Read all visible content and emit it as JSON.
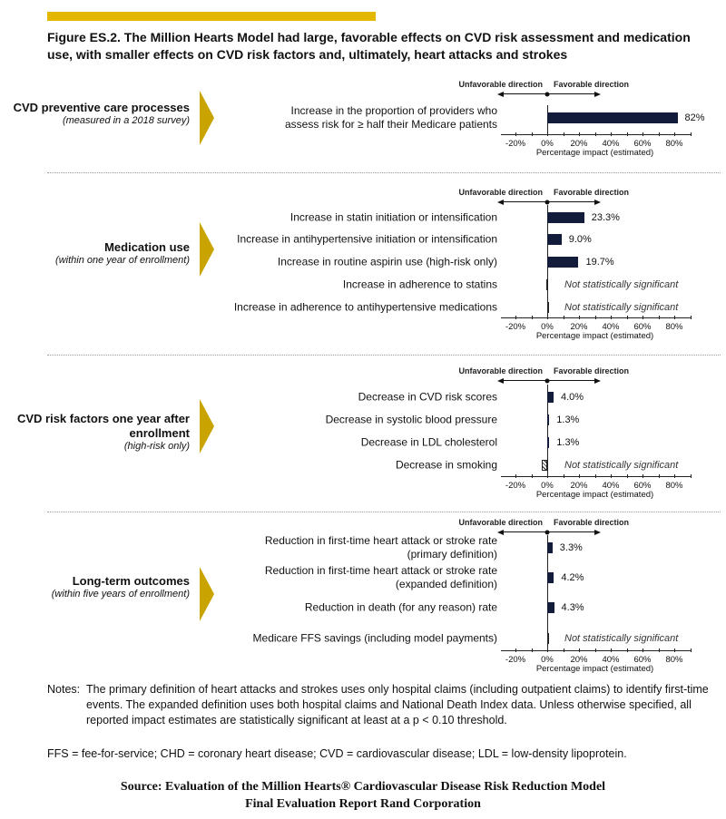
{
  "chart_data": {
    "type": "bar",
    "title": "Figure ES.2. The Million Hearts Model had large, favorable effects on CVD risk assessment and medication use, with smaller effects on CVD risk factors and, ultimately, heart attacks and strokes",
    "direction": {
      "unfavorable": "Unfavorable direction",
      "favorable": "Favorable direction"
    },
    "xlabel": "Percentage impact (estimated)",
    "xlim": [
      -29,
      90
    ],
    "ticks": [
      "-20%",
      "0%",
      "20%",
      "40%",
      "60%",
      "80%"
    ],
    "tick_values": [
      -20,
      0,
      20,
      40,
      60,
      80
    ],
    "panels": [
      {
        "category": {
          "title": "CVD preventive care processes",
          "subtitle": "(measured in a 2018 survey)"
        },
        "rows": [
          {
            "label": "Increase in the proportion of providers who\nassess risk for ≥ half their Medicare patients",
            "value": 82,
            "value_label": "82%",
            "significant": true
          }
        ]
      },
      {
        "category": {
          "title": "Medication use",
          "subtitle": "(within one year of enrollment)"
        },
        "rows": [
          {
            "label": "Increase in statin initiation or intensification",
            "value": 23.3,
            "value_label": "23.3%",
            "significant": true
          },
          {
            "label": "Increase in antihypertensive initiation or intensification",
            "value": 9.0,
            "value_label": "9.0%",
            "significant": true
          },
          {
            "label": "Increase in routine aspirin use (high-risk only)",
            "value": 19.7,
            "value_label": "19.7%",
            "significant": true
          },
          {
            "label": "Increase in adherence to statins",
            "value": -0.8,
            "value_label": "Not statistically significant",
            "significant": false
          },
          {
            "label": "Increase in adherence to antihypertensive medications",
            "value": 0.3,
            "value_label": "Not statistically significant",
            "significant": false
          }
        ]
      },
      {
        "category": {
          "title": "CVD risk factors one year after enrollment",
          "subtitle": "(high-risk only)"
        },
        "rows": [
          {
            "label": "Decrease in CVD risk scores",
            "value": 4.0,
            "value_label": "4.0%",
            "significant": true
          },
          {
            "label": "Decrease in systolic  blood pressure",
            "value": 1.3,
            "value_label": "1.3%",
            "significant": true
          },
          {
            "label": "Decrease in LDL cholesterol",
            "value": 1.3,
            "value_label": "1.3%",
            "significant": true
          },
          {
            "label": "Decrease in smoking",
            "value": -3.5,
            "value_label": "Not statistically significant",
            "significant": false
          }
        ]
      },
      {
        "category": {
          "title": "Long-term outcomes",
          "subtitle": "(within five years of enrollment)"
        },
        "rows": [
          {
            "label": "Reduction in first-time heart attack or stroke rate\n(primary definition)",
            "value": 3.3,
            "value_label": "3.3%",
            "significant": true
          },
          {
            "label": "Reduction in first-time heart attack or stroke rate\n(expanded definition)",
            "value": 4.2,
            "value_label": "4.2%",
            "significant": true
          },
          {
            "label": "Reduction in death (for any reason) rate",
            "value": 4.3,
            "value_label": "4.3%",
            "significant": true
          },
          {
            "label": "Medicare FFS savings (including model payments)",
            "value": 0,
            "value_label": "Not statistically significant",
            "significant": false
          }
        ]
      }
    ]
  },
  "notes": {
    "heading": "Notes:",
    "body": "The primary definition of heart attacks and strokes uses only hospital claims (including outpatient claims) to identify first-time events. The expanded definition uses both hospital claims and National Death Index data. Unless otherwise specified, all reported impact estimates are statistically significant at least at a p < 0.10 threshold."
  },
  "abbreviations": "FFS = fee-for-service; CHD = coronary heart disease; CVD = cardiovascular disease; LDL = low-density lipoprotein.",
  "source": {
    "line1": "Source: Evaluation of the Million Hearts® Cardiovascular Disease  Risk Reduction Model",
    "line2": "Final Evaluation Report Rand Corporation"
  },
  "colors": {
    "accent": "#e3b600",
    "chevron": "#c9a400",
    "bar": "#141c3c"
  }
}
